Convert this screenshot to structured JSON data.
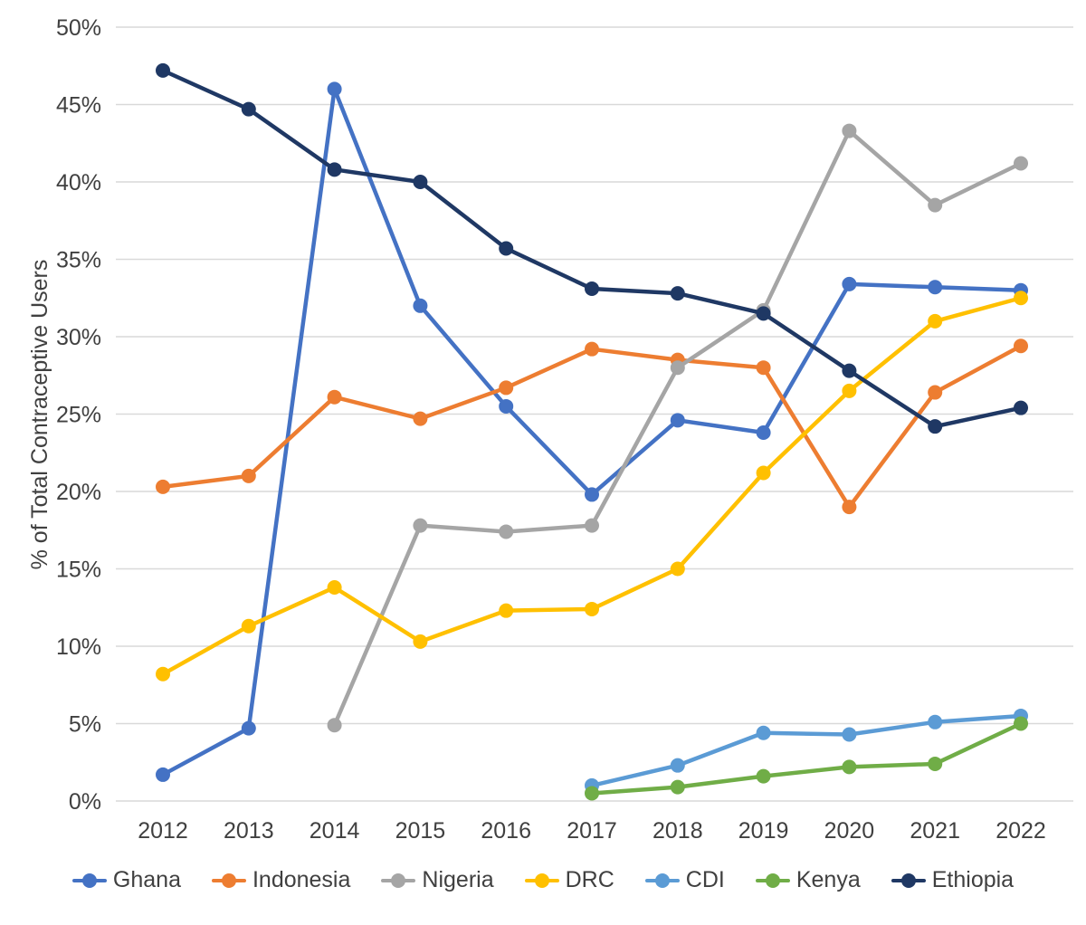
{
  "chart_data": {
    "type": "line",
    "title": "",
    "xlabel": "",
    "ylabel": "% of Total Contraceptive Users",
    "ylim": [
      0,
      50
    ],
    "ytick_step": 5,
    "ytick_suffix": "%",
    "grid": true,
    "legend_position": "bottom",
    "categories": [
      "2012",
      "2013",
      "2014",
      "2015",
      "2016",
      "2017",
      "2018",
      "2019",
      "2020",
      "2021",
      "2022"
    ],
    "series": [
      {
        "name": "Ghana",
        "color": "#4472C4",
        "values": [
          1.7,
          4.7,
          46.0,
          32.0,
          25.5,
          19.8,
          24.6,
          23.8,
          33.4,
          33.2,
          33.0
        ]
      },
      {
        "name": "Indonesia",
        "color": "#ED7D31",
        "values": [
          20.3,
          21.0,
          26.1,
          24.7,
          26.7,
          29.2,
          28.5,
          28.0,
          19.0,
          26.4,
          29.4
        ]
      },
      {
        "name": "Nigeria",
        "color": "#A5A5A5",
        "values": [
          null,
          null,
          4.9,
          17.8,
          17.4,
          17.8,
          28.0,
          31.7,
          43.3,
          38.5,
          41.2
        ]
      },
      {
        "name": "DRC",
        "color": "#FFC000",
        "values": [
          8.2,
          11.3,
          13.8,
          10.3,
          12.3,
          12.4,
          15.0,
          21.2,
          26.5,
          31.0,
          32.5
        ]
      },
      {
        "name": "CDI",
        "color": "#5B9BD5",
        "values": [
          null,
          null,
          null,
          null,
          null,
          1.0,
          2.3,
          4.4,
          4.3,
          5.1,
          5.5
        ]
      },
      {
        "name": "Kenya",
        "color": "#70AD47",
        "values": [
          null,
          null,
          null,
          null,
          null,
          0.5,
          0.9,
          1.6,
          2.2,
          2.4,
          5.0
        ]
      },
      {
        "name": "Ethiopia",
        "color": "#1F3864",
        "values": [
          47.2,
          44.7,
          40.8,
          40.0,
          35.7,
          33.1,
          32.8,
          31.5,
          27.8,
          24.2,
          25.4
        ]
      }
    ]
  }
}
